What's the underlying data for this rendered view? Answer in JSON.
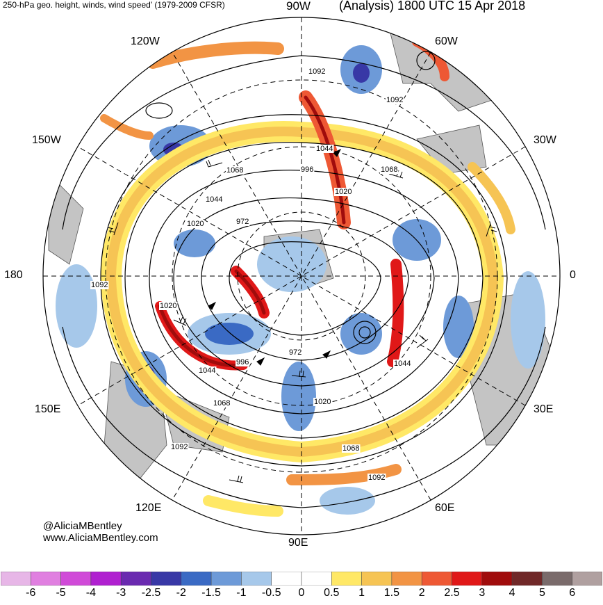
{
  "header": {
    "left_title": "250-hPa geo. height, winds, wind speed’ (1979-2009 CFSR)",
    "right_title": "(Analysis) 1800 UTC 15 Apr 2018"
  },
  "longitude_labels": {
    "top": "90W",
    "top_right": "60W",
    "right_upper": "30W",
    "right": "0",
    "right_lower": "30E",
    "bottom_right": "60E",
    "bottom": "90E",
    "bottom_left": "120E",
    "left_lower": "150E",
    "left": "180",
    "left_upper": "150W",
    "top_left": "120W"
  },
  "contour_labels": [
    "1092",
    "1092",
    "1068",
    "1044",
    "996",
    "1068",
    "1020",
    "1044",
    "1020",
    "972",
    "1092",
    "1020",
    "996",
    "972",
    "1044",
    "1044",
    "1020",
    "1068",
    "1068",
    "1092",
    "1092"
  ],
  "credits": {
    "handle": "@AliciaMBentley",
    "website": "www.AliciaMBentley.com"
  },
  "colorbar": {
    "ticks": [
      "-6",
      "-5",
      "-4",
      "-3",
      "-2.5",
      "-2",
      "-1.5",
      "-1",
      "-0.5",
      "0",
      "0.5",
      "1",
      "1.5",
      "2",
      "2.5",
      "3",
      "4",
      "5",
      "6"
    ],
    "colors": [
      "#e7b6e7",
      "#e07fe0",
      "#d04ad8",
      "#b020d0",
      "#6a2ab0",
      "#3838a6",
      "#3a6ac4",
      "#6d9ad8",
      "#a6c8ea",
      "#ffffff",
      "#ffffff",
      "#ffe866",
      "#f6c454",
      "#f29444",
      "#ee5834",
      "#e01818",
      "#a00c0c",
      "#702828",
      "#7a6b6b",
      "#b0a0a0"
    ]
  }
}
